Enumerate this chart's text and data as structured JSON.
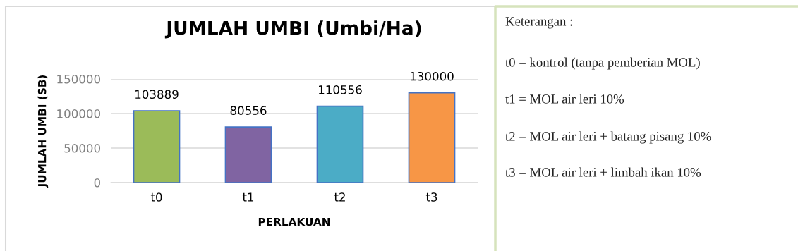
{
  "chart_data": {
    "type": "bar",
    "title": "JUMLAH UMBI (Umbi/Ha)",
    "xlabel": "PERLAKUAN",
    "ylabel": "JUMLAH UMBI (SB)",
    "categories": [
      "t0",
      "t1",
      "t2",
      "t3"
    ],
    "values": [
      103889,
      80556,
      110556,
      130000
    ],
    "colors": [
      "#9bbb59",
      "#8064a2",
      "#4bacc6",
      "#f79646"
    ],
    "ylim": [
      0,
      150000
    ],
    "yticks": [
      0,
      50000,
      100000,
      150000
    ],
    "grid": "y",
    "data_labels": true,
    "annotations": [
      "Keterangan :",
      "t0 = kontrol (tanpa pemberian MOL)",
      "t1 = MOL air leri 10%",
      "t2 = MOL air leri + batang pisang 10%",
      "t3 = MOL air leri + limbah ikan 10%"
    ]
  }
}
